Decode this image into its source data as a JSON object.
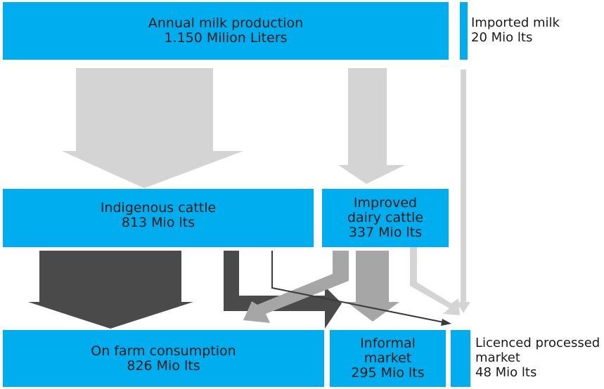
{
  "colors": {
    "box": "#00aeef",
    "flow_light": "#d4d4d4",
    "flow_mid": "#a6a6a6",
    "flow_dark": "#4a4a4a",
    "flow_line": "#3a3a3a",
    "text": "#1a1a1a"
  },
  "nodes": {
    "production": {
      "line1": "Annual milk production",
      "line2": "1.150 Milion Liters"
    },
    "imported": {
      "line1": "Imported milk",
      "line2": "20 Mio lts"
    },
    "indigenous": {
      "line1": "Indigenous cattle",
      "line2": "813 Mio lts"
    },
    "improved": {
      "line1": "Improved",
      "line2": "dairy cattle",
      "line3": "337 Mio lts"
    },
    "onfarm": {
      "line1": "On farm consumption",
      "line2": "826 Mio lts"
    },
    "informal": {
      "line1": "Informal",
      "line2": "market",
      "line3": "295 Mio lts"
    },
    "licenced": {
      "line1": "Licenced processed",
      "line2": "market",
      "line3": "48 Mio lts"
    }
  }
}
